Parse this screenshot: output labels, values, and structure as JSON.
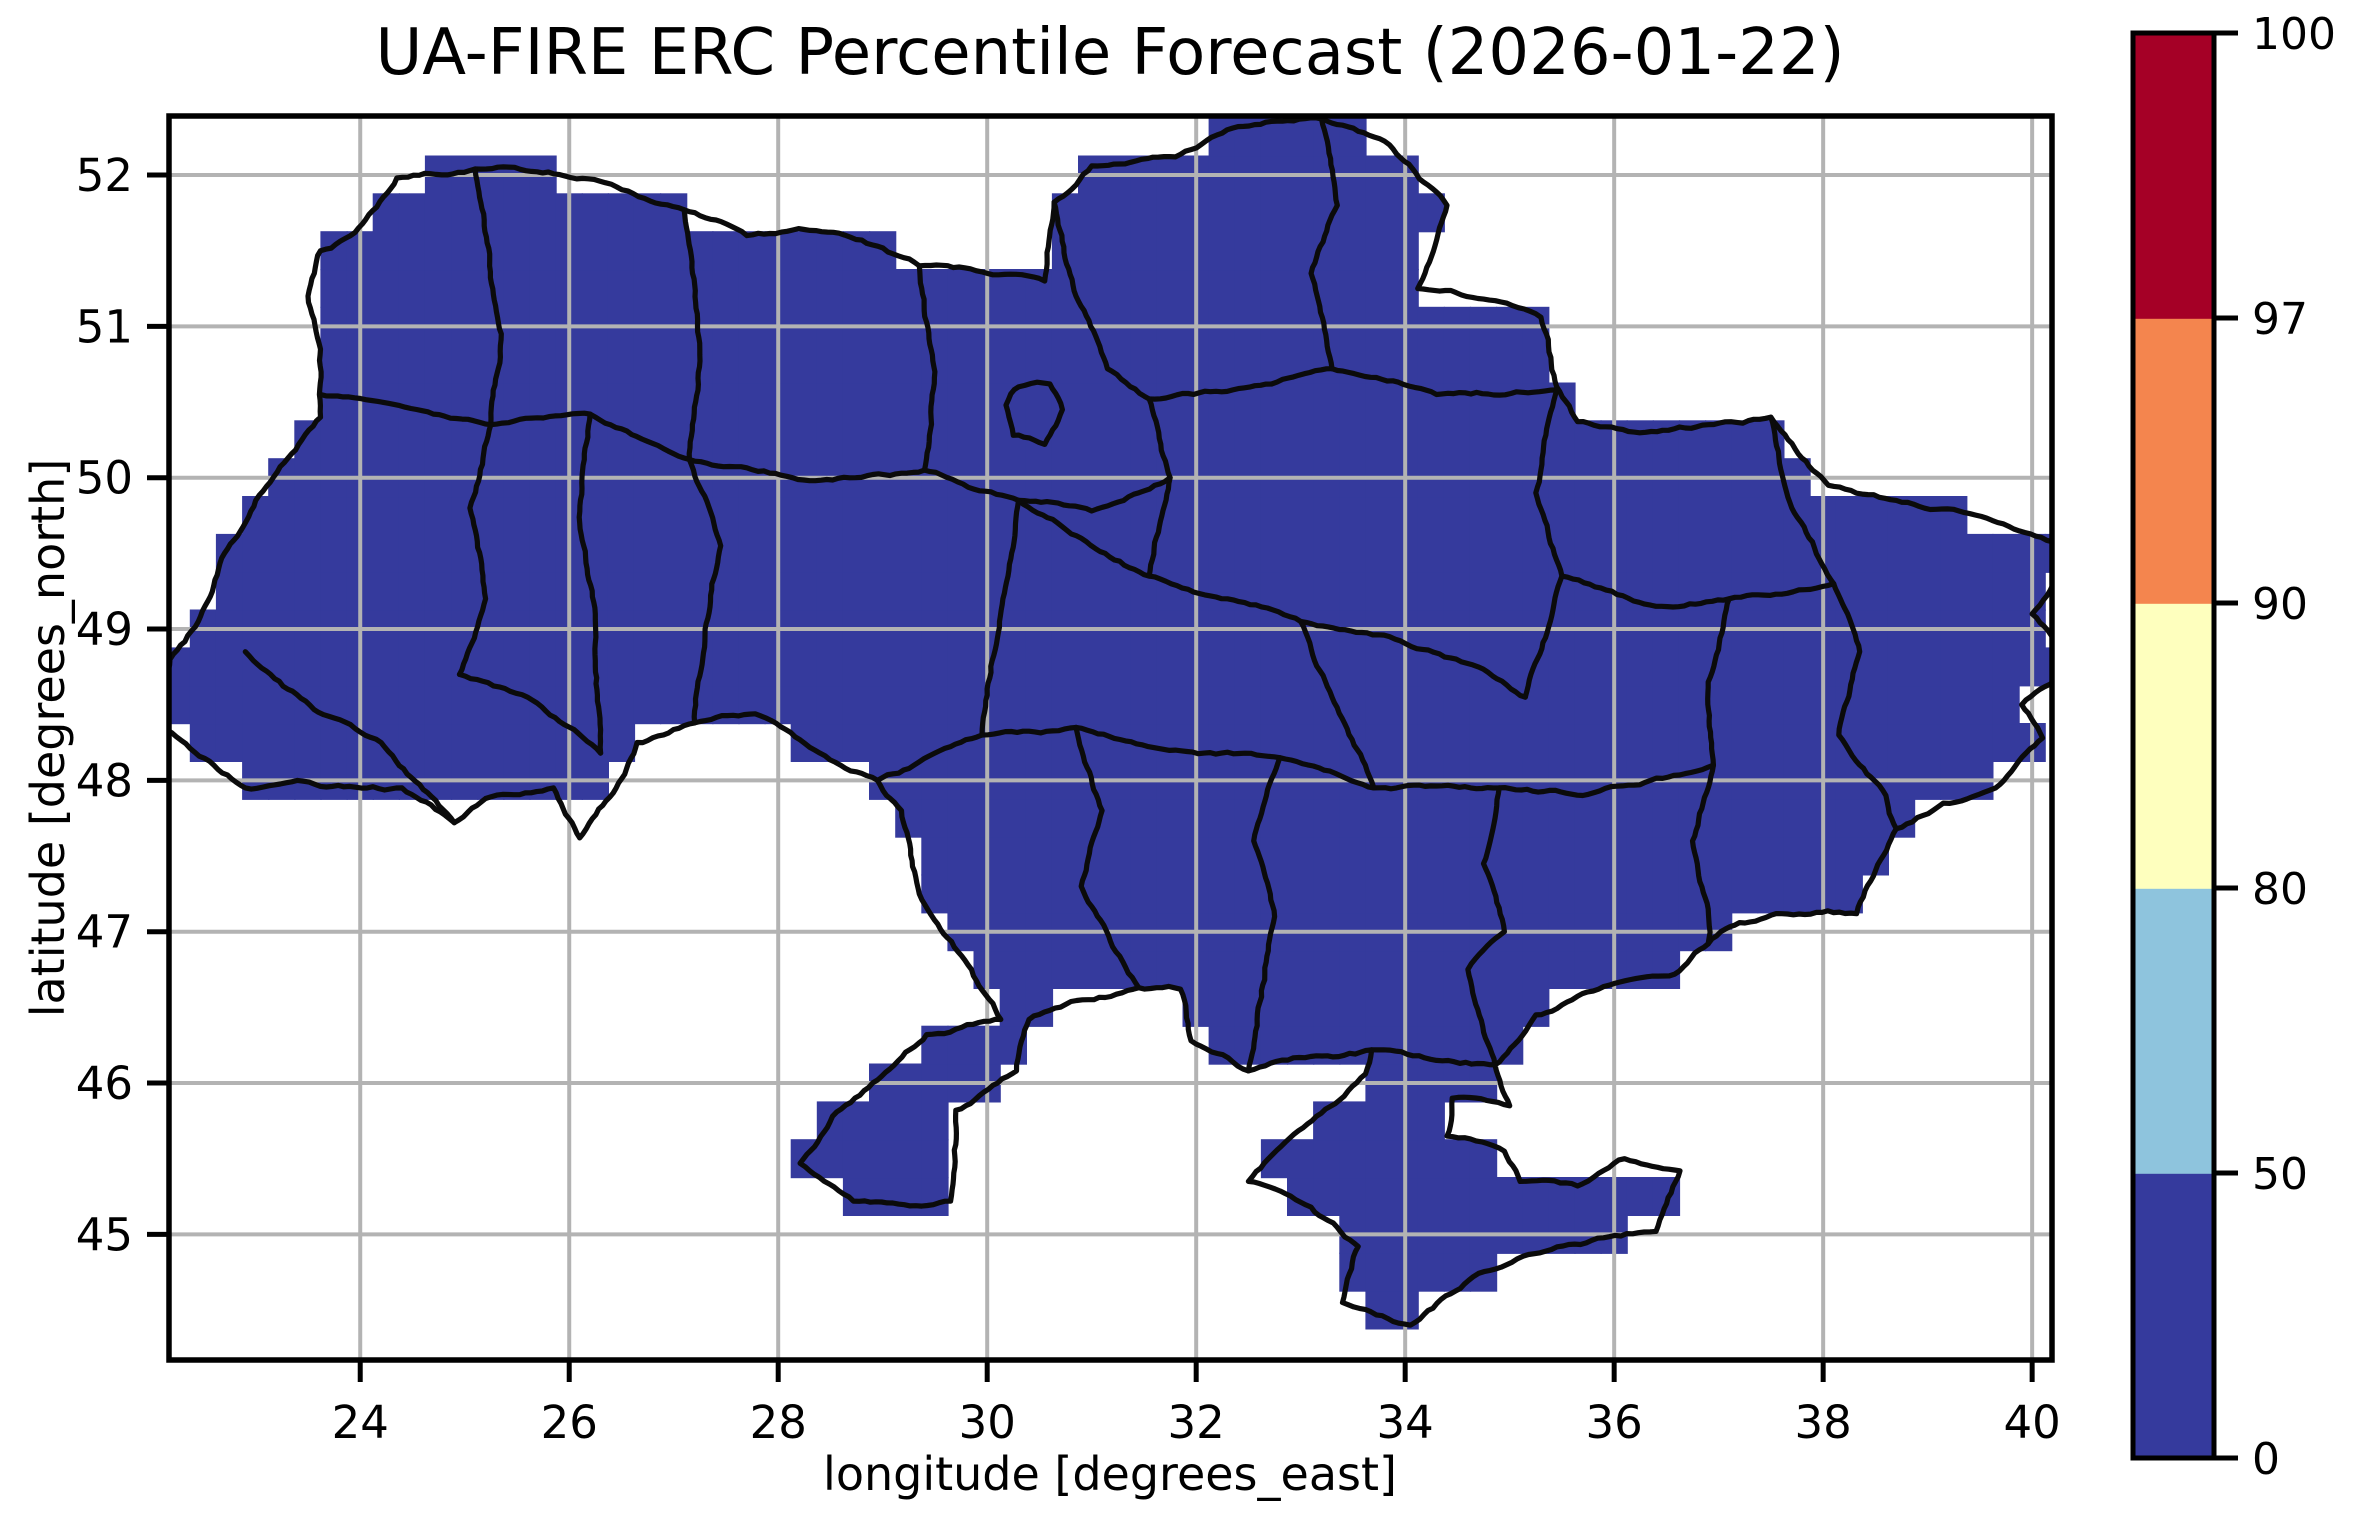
{
  "figure": {
    "title": "UA-FIRE ERC Percentile Forecast (2026-01-22)",
    "background": "#ffffff"
  },
  "axes": {
    "xlabel": "longitude [degrees_east]",
    "ylabel": "latitude [degrees_north]",
    "x_ticks": [
      24,
      26,
      28,
      30,
      32,
      34,
      36,
      38,
      40
    ],
    "y_ticks": [
      45,
      46,
      47,
      48,
      49,
      50,
      51,
      52
    ],
    "x_range": [
      22.17,
      40.19
    ],
    "y_range": [
      44.17,
      52.39
    ],
    "grid_color": "#b3b3b3",
    "spine_color": "#000000",
    "grid_on": true
  },
  "colorbar": {
    "boundaries": [
      0,
      50,
      80,
      90,
      97,
      100
    ],
    "tick_labels": [
      "0",
      "50",
      "80",
      "90",
      "97",
      "100"
    ],
    "segment_colors": [
      "#353a9d",
      "#8ec4dd",
      "#feffbe",
      "#f4854e",
      "#a50026"
    ],
    "spacing": "uniform",
    "outline_color": "#000000"
  },
  "chart_data": {
    "type": "heatmap",
    "title": "UA-FIRE ERC Percentile Forecast (2026-01-22)",
    "xlabel": "longitude [degrees_east]",
    "ylabel": "latitude [degrees_north]",
    "x_ticks": [
      24,
      26,
      28,
      30,
      32,
      34,
      36,
      38,
      40
    ],
    "y_ticks": [
      45,
      46,
      47,
      48,
      49,
      50,
      51,
      52
    ],
    "xlim": [
      22.17,
      40.19
    ],
    "ylim": [
      44.17,
      52.39
    ],
    "region": "Ukraine",
    "cell_size_deg": 0.25,
    "field": "ERC percentile",
    "field_value_bin_everywhere": "0-50",
    "legend_position": "right colorbar",
    "colorbar_boundaries": [
      0,
      50,
      80,
      90,
      97,
      100
    ],
    "colorbar_colors_low_to_high": [
      "#353a9d",
      "#8ec4dd",
      "#feffbe",
      "#f4854e",
      "#a50026"
    ]
  },
  "map": {
    "region": "Ukraine",
    "fill_color": "#353a9d",
    "border_color": "#0b0b0b",
    "cell_size_deg": 0.25,
    "outline": [
      [
        23.62,
        51.5
      ],
      [
        23.95,
        51.62
      ],
      [
        24.35,
        51.98
      ],
      [
        25.1,
        52.04
      ],
      [
        25.8,
        52.02
      ],
      [
        26.4,
        51.94
      ],
      [
        27.1,
        51.77
      ],
      [
        27.7,
        51.6
      ],
      [
        28.25,
        51.64
      ],
      [
        28.8,
        51.57
      ],
      [
        29.35,
        51.4
      ],
      [
        30.0,
        51.35
      ],
      [
        30.55,
        51.3
      ],
      [
        30.64,
        51.82
      ],
      [
        31.0,
        52.06
      ],
      [
        31.8,
        52.12
      ],
      [
        32.4,
        52.32
      ],
      [
        33.2,
        52.37
      ],
      [
        33.85,
        52.2
      ],
      [
        34.4,
        51.8
      ],
      [
        34.12,
        51.25
      ],
      [
        34.75,
        51.18
      ],
      [
        35.3,
        51.06
      ],
      [
        35.45,
        50.6
      ],
      [
        35.65,
        50.37
      ],
      [
        36.3,
        50.3
      ],
      [
        36.9,
        50.35
      ],
      [
        37.5,
        50.4
      ],
      [
        38.05,
        49.95
      ],
      [
        38.7,
        49.85
      ],
      [
        39.3,
        49.78
      ],
      [
        40.45,
        49.5
      ],
      [
        40.0,
        49.1
      ],
      [
        40.45,
        48.75
      ],
      [
        39.9,
        48.5
      ],
      [
        40.1,
        48.28
      ],
      [
        39.65,
        47.95
      ],
      [
        39.15,
        47.85
      ],
      [
        38.7,
        47.68
      ],
      [
        38.32,
        47.12
      ],
      [
        37.55,
        47.12
      ],
      [
        37.2,
        47.06
      ],
      [
        36.9,
        46.92
      ],
      [
        36.58,
        46.72
      ],
      [
        35.85,
        46.62
      ],
      [
        35.25,
        46.45
      ],
      [
        34.86,
        46.12
      ],
      [
        35.0,
        45.85
      ],
      [
        34.45,
        45.9
      ],
      [
        34.4,
        45.65
      ],
      [
        34.95,
        45.55
      ],
      [
        35.1,
        45.35
      ],
      [
        35.65,
        45.32
      ],
      [
        36.1,
        45.5
      ],
      [
        36.63,
        45.42
      ],
      [
        36.4,
        45.02
      ],
      [
        35.4,
        44.9
      ],
      [
        34.65,
        44.72
      ],
      [
        34.05,
        44.4
      ],
      [
        33.4,
        44.55
      ],
      [
        33.55,
        44.92
      ],
      [
        33.1,
        45.18
      ],
      [
        32.5,
        45.35
      ],
      [
        33.15,
        45.78
      ],
      [
        33.62,
        46.06
      ],
      [
        33.68,
        46.22
      ],
      [
        33.15,
        46.18
      ],
      [
        32.5,
        46.08
      ],
      [
        31.95,
        46.28
      ],
      [
        31.85,
        46.62
      ],
      [
        31.45,
        46.63
      ],
      [
        30.75,
        46.52
      ],
      [
        30.4,
        46.42
      ],
      [
        30.28,
        46.08
      ],
      [
        29.7,
        45.82
      ],
      [
        29.65,
        45.22
      ],
      [
        29.15,
        45.2
      ],
      [
        28.72,
        45.22
      ],
      [
        28.21,
        45.47
      ],
      [
        28.52,
        45.78
      ],
      [
        28.95,
        46.02
      ],
      [
        29.42,
        46.32
      ],
      [
        29.92,
        46.4
      ],
      [
        30.13,
        46.42
      ],
      [
        29.85,
        46.75
      ],
      [
        29.35,
        47.25
      ],
      [
        29.18,
        47.8
      ],
      [
        28.95,
        48.0
      ],
      [
        28.35,
        48.2
      ],
      [
        27.78,
        48.44
      ],
      [
        27.2,
        48.38
      ],
      [
        26.65,
        48.25
      ],
      [
        26.45,
        47.95
      ],
      [
        26.1,
        47.62
      ],
      [
        25.85,
        47.95
      ],
      [
        25.2,
        47.88
      ],
      [
        24.9,
        47.72
      ],
      [
        24.4,
        47.95
      ],
      [
        23.9,
        47.96
      ],
      [
        23.4,
        48.0
      ],
      [
        22.9,
        47.95
      ],
      [
        22.6,
        48.1
      ],
      [
        22.1,
        48.35
      ],
      [
        22.18,
        48.8
      ],
      [
        22.45,
        49.05
      ],
      [
        22.7,
        49.5
      ],
      [
        23.0,
        49.85
      ],
      [
        23.62,
        50.4
      ],
      [
        23.62,
        50.85
      ],
      [
        23.5,
        51.2
      ]
    ],
    "admin_lines": [
      [
        [
          25.1,
          52.04
        ],
        [
          25.35,
          50.95
        ],
        [
          25.25,
          50.35
        ]
      ],
      [
        [
          27.1,
          51.77
        ],
        [
          27.25,
          50.85
        ],
        [
          27.15,
          50.12
        ]
      ],
      [
        [
          23.62,
          50.55
        ],
        [
          24.7,
          50.42
        ],
        [
          25.25,
          50.35
        ],
        [
          26.2,
          50.42
        ],
        [
          27.15,
          50.12
        ]
      ],
      [
        [
          29.35,
          51.4
        ],
        [
          29.5,
          50.7
        ],
        [
          29.4,
          50.05
        ]
      ],
      [
        [
          27.15,
          50.12
        ],
        [
          28.3,
          49.98
        ],
        [
          29.4,
          50.05
        ],
        [
          30.3,
          49.85
        ]
      ],
      [
        [
          30.64,
          51.82
        ],
        [
          30.85,
          51.2
        ],
        [
          31.15,
          50.72
        ],
        [
          31.55,
          50.52
        ]
      ],
      [
        [
          33.2,
          52.37
        ],
        [
          33.35,
          51.8
        ],
        [
          33.1,
          51.35
        ],
        [
          33.3,
          50.72
        ]
      ],
      [
        [
          31.55,
          50.52
        ],
        [
          32.35,
          50.58
        ],
        [
          33.3,
          50.72
        ]
      ],
      [
        [
          33.3,
          50.72
        ],
        [
          34.3,
          50.55
        ],
        [
          35.45,
          50.58
        ]
      ],
      [
        [
          30.3,
          49.85
        ],
        [
          30.9,
          49.6
        ],
        [
          31.55,
          49.35
        ],
        [
          32.3,
          49.2
        ],
        [
          33.0,
          49.05
        ],
        [
          33.85,
          48.95
        ],
        [
          34.7,
          48.75
        ],
        [
          35.15,
          48.55
        ]
      ],
      [
        [
          31.55,
          50.52
        ],
        [
          31.75,
          50.0
        ],
        [
          31.55,
          49.35
        ]
      ],
      [
        [
          30.3,
          49.85
        ],
        [
          31.0,
          49.78
        ],
        [
          31.75,
          50.0
        ]
      ],
      [
        [
          35.45,
          50.58
        ],
        [
          35.25,
          49.9
        ],
        [
          35.5,
          49.35
        ],
        [
          35.15,
          48.55
        ]
      ],
      [
        [
          35.5,
          49.35
        ],
        [
          36.4,
          49.15
        ],
        [
          37.1,
          49.2
        ],
        [
          38.1,
          49.3
        ]
      ],
      [
        [
          37.5,
          50.4
        ],
        [
          37.7,
          49.8
        ],
        [
          38.1,
          49.3
        ]
      ],
      [
        [
          38.1,
          49.3
        ],
        [
          38.35,
          48.85
        ],
        [
          38.15,
          48.3
        ],
        [
          38.6,
          47.9
        ],
        [
          38.7,
          47.68
        ]
      ],
      [
        [
          37.1,
          49.2
        ],
        [
          36.9,
          48.65
        ],
        [
          36.95,
          48.1
        ]
      ],
      [
        [
          36.95,
          48.1
        ],
        [
          36.75,
          47.6
        ],
        [
          36.9,
          47.15
        ],
        [
          36.9,
          46.92
        ]
      ],
      [
        [
          33.7,
          47.95
        ],
        [
          34.9,
          47.95
        ],
        [
          35.7,
          47.9
        ],
        [
          36.95,
          48.1
        ]
      ],
      [
        [
          33.0,
          49.05
        ],
        [
          33.3,
          48.55
        ],
        [
          33.7,
          47.95
        ]
      ],
      [
        [
          29.95,
          48.3
        ],
        [
          30.85,
          48.35
        ],
        [
          31.8,
          48.2
        ],
        [
          32.8,
          48.15
        ],
        [
          33.7,
          47.95
        ]
      ],
      [
        [
          30.3,
          49.85
        ],
        [
          30.15,
          49.2
        ],
        [
          29.95,
          48.3
        ]
      ],
      [
        [
          29.95,
          48.3
        ],
        [
          29.3,
          48.1
        ],
        [
          28.95,
          48.0
        ]
      ],
      [
        [
          27.15,
          50.12
        ],
        [
          27.45,
          49.55
        ],
        [
          27.3,
          49.0
        ],
        [
          27.2,
          48.38
        ]
      ],
      [
        [
          26.2,
          50.42
        ],
        [
          26.1,
          49.7
        ],
        [
          26.25,
          49.1
        ],
        [
          26.3,
          48.18
        ]
      ],
      [
        [
          25.25,
          50.35
        ],
        [
          25.05,
          49.8
        ],
        [
          25.2,
          49.2
        ],
        [
          24.95,
          48.7
        ]
      ],
      [
        [
          24.95,
          48.7
        ],
        [
          25.6,
          48.55
        ],
        [
          26.3,
          48.18
        ]
      ],
      [
        [
          22.9,
          48.85
        ],
        [
          23.6,
          48.45
        ],
        [
          24.2,
          48.25
        ],
        [
          24.9,
          47.72
        ]
      ],
      [
        [
          30.85,
          48.35
        ],
        [
          31.1,
          47.8
        ],
        [
          30.9,
          47.3
        ],
        [
          31.2,
          46.9
        ],
        [
          31.45,
          46.63
        ]
      ],
      [
        [
          32.8,
          48.15
        ],
        [
          32.55,
          47.6
        ],
        [
          32.75,
          47.1
        ],
        [
          32.5,
          46.08
        ]
      ],
      [
        [
          34.9,
          47.95
        ],
        [
          34.75,
          47.45
        ],
        [
          34.95,
          47.0
        ],
        [
          34.6,
          46.75
        ],
        [
          34.86,
          46.12
        ]
      ],
      [
        [
          33.68,
          46.22
        ],
        [
          34.3,
          46.15
        ],
        [
          34.86,
          46.12
        ]
      ],
      [
        [
          30.3,
          50.6
        ],
        [
          30.6,
          50.62
        ],
        [
          30.72,
          50.45
        ],
        [
          30.55,
          50.22
        ],
        [
          30.25,
          50.28
        ],
        [
          30.18,
          50.48
        ],
        [
          30.3,
          50.6
        ]
      ]
    ]
  }
}
